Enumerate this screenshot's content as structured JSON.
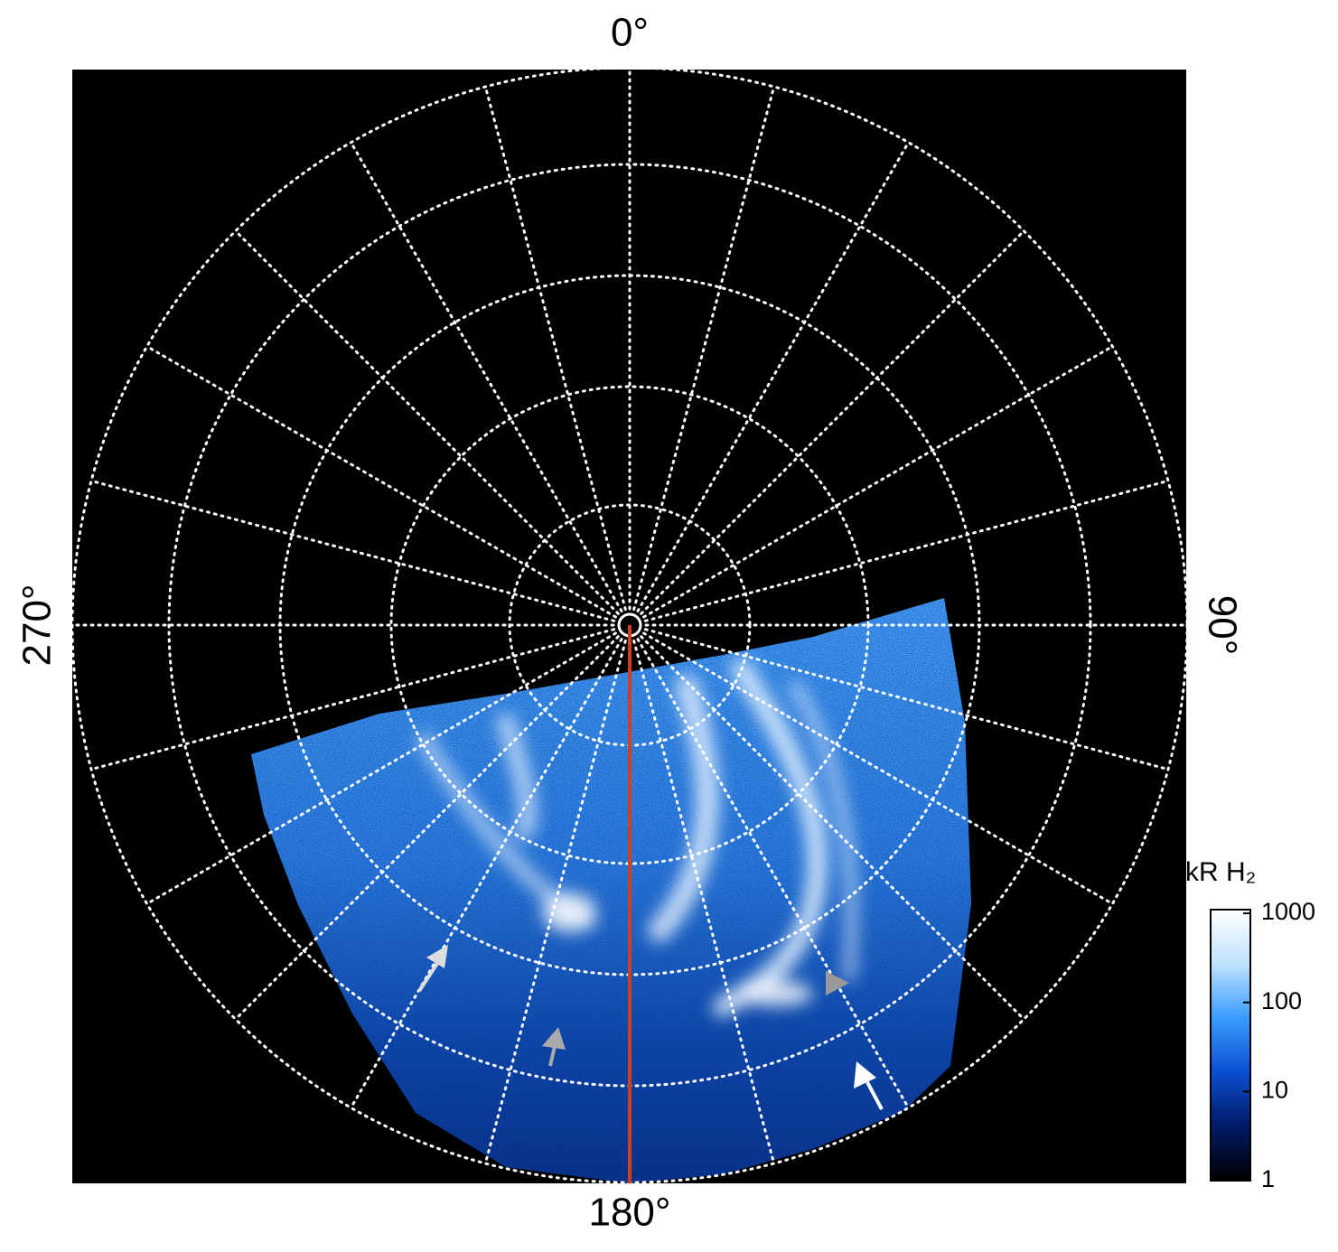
{
  "chart_data": {
    "type": "polar-image",
    "angle_labels": [
      {
        "value": 0,
        "label": "0°"
      },
      {
        "value": 90,
        "label": "90°"
      },
      {
        "value": 180,
        "label": "180°"
      },
      {
        "value": 270,
        "label": "270°"
      }
    ],
    "colorbar": {
      "title": "kR H₂",
      "scale": "log",
      "clim": [
        1,
        1100
      ],
      "ticks": [
        1,
        10,
        100,
        1000
      ],
      "colors": [
        "#000000",
        "#001a66",
        "#0a4fd0",
        "#3a9cff",
        "#bfe2ff",
        "#ffffff"
      ]
    }
  }
}
